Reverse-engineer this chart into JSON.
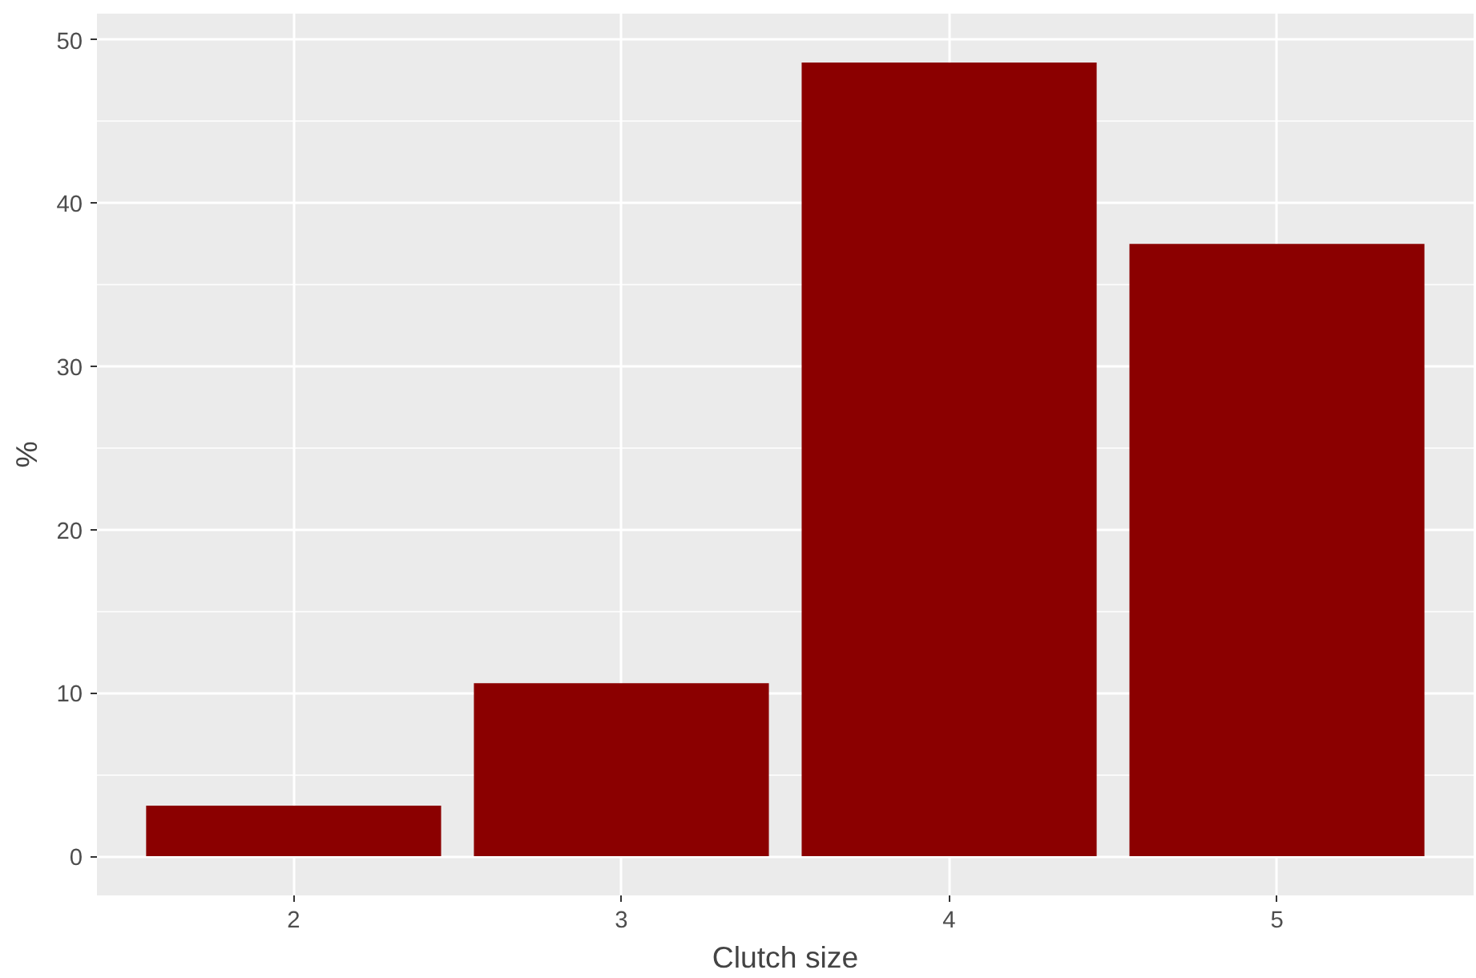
{
  "chart_data": {
    "type": "bar",
    "xlabel": "Clutch size",
    "ylabel": "%",
    "categories": [
      "2",
      "3",
      "4",
      "5"
    ],
    "values": [
      3.1,
      10.6,
      48.6,
      37.5
    ],
    "color": "#8b0000",
    "ylim": [
      -2.4,
      51.6
    ],
    "yticks": [
      0,
      10,
      20,
      30,
      40,
      50
    ],
    "grid": true
  }
}
